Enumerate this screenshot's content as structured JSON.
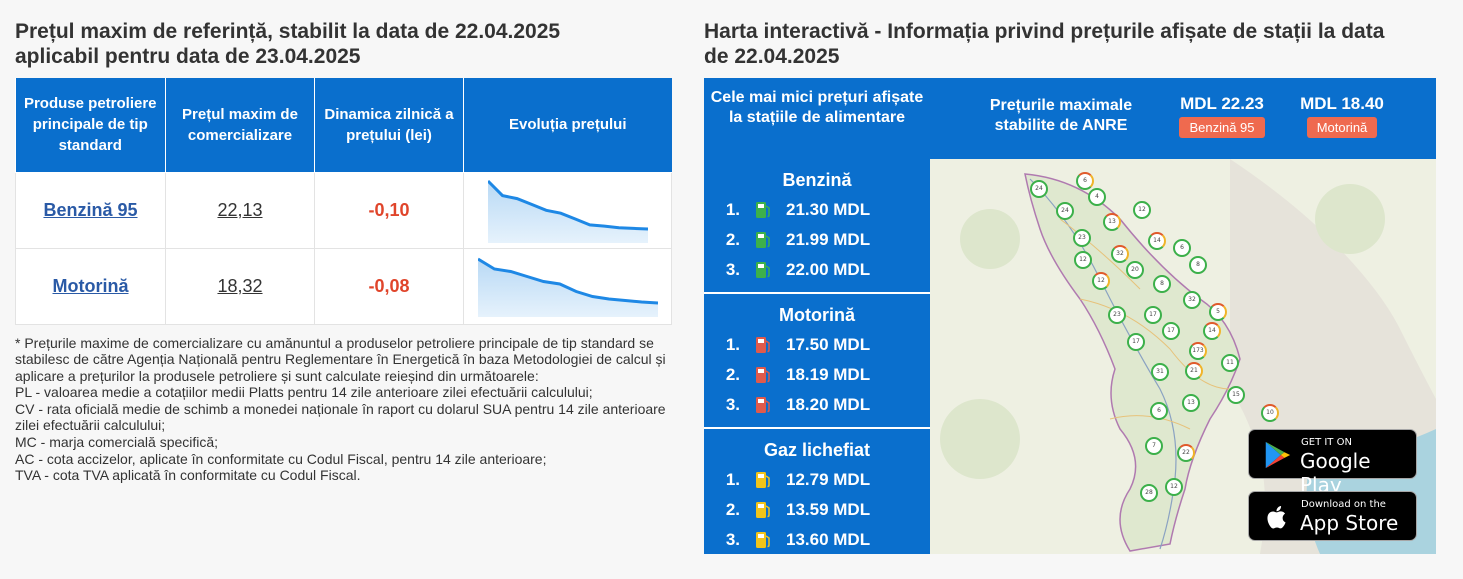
{
  "left": {
    "title_line1": "Prețul maxim de referință, stabilit la data de 22.04.2025",
    "title_line2": "aplicabil pentru data de 23.04.2025",
    "headers": [
      "Produse petroliere principale de tip standard",
      "Prețul maxim de comercializare",
      "Dinamica zilnică a prețului (lei)",
      "Evoluția prețului"
    ],
    "rows": [
      {
        "product": "Benzină 95",
        "price": "22,13",
        "delta": "-0,10",
        "trend": [
          22.95,
          22.7,
          22.65,
          22.55,
          22.45,
          22.4,
          22.3,
          22.2,
          22.18,
          22.15,
          22.14,
          22.13
        ]
      },
      {
        "product": "Motorină",
        "price": "18,32",
        "delta": "-0,08",
        "trend": [
          19.2,
          19.0,
          18.95,
          18.85,
          18.75,
          18.7,
          18.55,
          18.45,
          18.4,
          18.37,
          18.34,
          18.32
        ]
      }
    ],
    "notes": [
      "* Prețurile maxime de comercializare cu amănuntul a produselor petroliere principale de tip standard se stabilesc de către Agenția Națională pentru Reglementare în Energetică în baza Metodologiei de calcul și aplicare a prețurilor la produsele petroliere și sunt calculate reieșind din următoarele:",
      "PL - valoarea medie a cotațiilor medii Platts pentru 14 zile anterioare zilei efectuării calculului;",
      "CV - rata oficială medie de schimb a monedei naționale în raport cu dolarul SUA pentru 14 zile anterioare zilei efectuării calculului;",
      "MC - marja comercială specifică;",
      "AC - cota accizelor, aplicate în conformitate cu Codul Fiscal, pentru 14 zile anterioare;",
      "TVA - cota TVA aplicată în conformitate cu Codul Fiscal."
    ]
  },
  "right": {
    "title_line1": "Harta interactivă - Informația privind prețurile afișate de stații la data",
    "title_line2": "de 22.04.2025",
    "lowest_label": "Cele mai mici prețuri afișate la stațiile de alimentare",
    "anre_label": "Prețurile maximale stabilite de ANRE",
    "anre_prices": [
      {
        "value": "MDL 22.23",
        "badge": "Benzină 95"
      },
      {
        "value": "MDL 18.40",
        "badge": "Motorină"
      }
    ],
    "fuels": [
      {
        "name": "Benzină",
        "icon_color": "#3cb04a",
        "prices": [
          {
            "rank": "1.",
            "value": "21.30 MDL"
          },
          {
            "rank": "2.",
            "value": "21.99 MDL"
          },
          {
            "rank": "3.",
            "value": "22.00 MDL"
          }
        ]
      },
      {
        "name": "Motorină",
        "icon_color": "#e05a4b",
        "prices": [
          {
            "rank": "1.",
            "value": "17.50 MDL"
          },
          {
            "rank": "2.",
            "value": "18.19 MDL"
          },
          {
            "rank": "3.",
            "value": "18.20 MDL"
          }
        ]
      },
      {
        "name": "Gaz lichefiat",
        "icon_color": "#f0c419",
        "prices": [
          {
            "rank": "1.",
            "value": "12.79 MDL"
          },
          {
            "rank": "2.",
            "value": "13.59 MDL"
          },
          {
            "rank": "3.",
            "value": "13.60 MDL"
          }
        ]
      }
    ],
    "map_markers": [
      "24",
      "6",
      "4",
      "24",
      "13",
      "12",
      "23",
      "14",
      "6",
      "8",
      "32",
      "20",
      "12",
      "12",
      "8",
      "32",
      "5",
      "23",
      "17",
      "14",
      "17",
      "17",
      "173",
      "11",
      "31",
      "21",
      "15",
      "13",
      "10",
      "6",
      "7",
      "22",
      "28",
      "12"
    ],
    "google_play": {
      "small": "GET IT ON",
      "big": "Google Play"
    },
    "app_store": {
      "small": "Download on the",
      "big": "App Store"
    }
  }
}
